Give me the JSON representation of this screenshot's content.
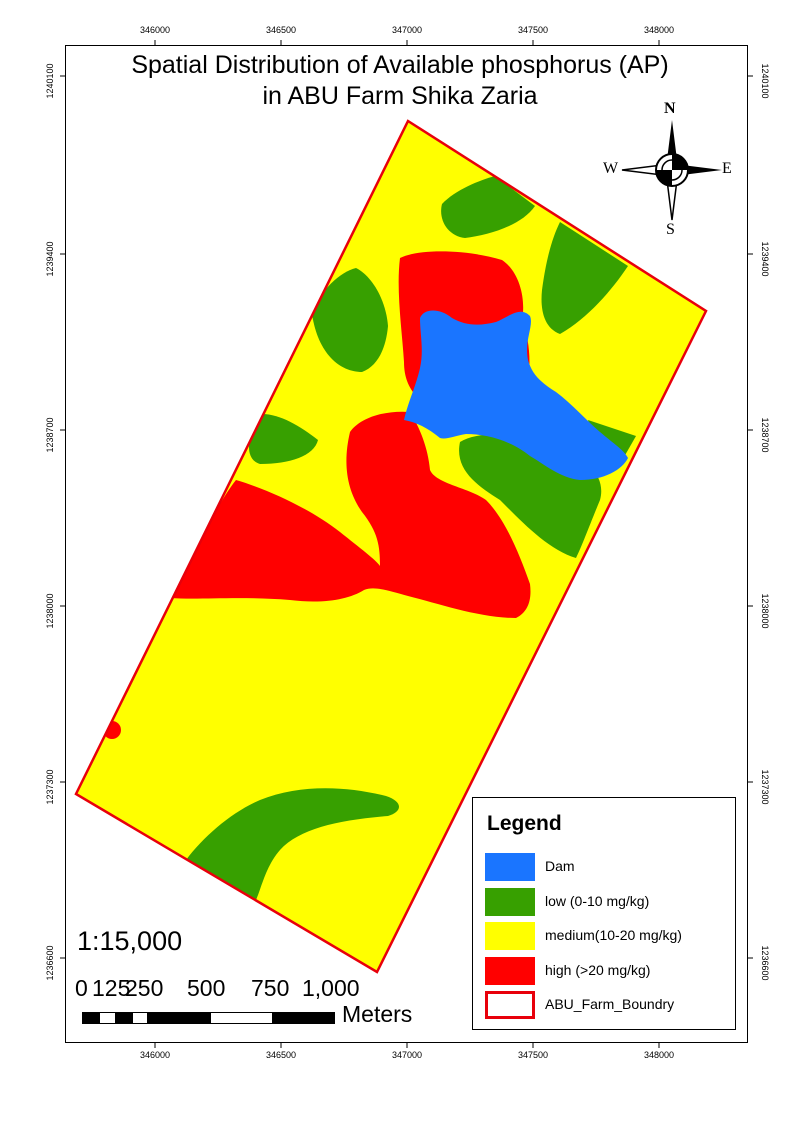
{
  "title_line1": "Spatial Distribution of Available phosphorus (AP)",
  "title_line2": "in ABU Farm Shika Zaria",
  "grid": {
    "x_ticks": [
      "346000",
      "346500",
      "347000",
      "347500",
      "348000"
    ],
    "y_ticks": [
      "1240100",
      "1239400",
      "1238700",
      "1238000",
      "1237300",
      "1236600"
    ]
  },
  "north_arrow": {
    "n": "N",
    "s": "S",
    "e": "E",
    "w": "W"
  },
  "legend": {
    "title": "Legend",
    "items": [
      {
        "label": "Dam",
        "color": "#1a75ff",
        "kind": "fill"
      },
      {
        "label": "low (0-10 mg/kg)",
        "color": "#37a000",
        "kind": "fill"
      },
      {
        "label": "medium(10-20 mg/kg)",
        "color": "#ffff00",
        "kind": "fill"
      },
      {
        "label": "high (>20 mg/kg)",
        "color": "#ff0000",
        "kind": "fill"
      },
      {
        "label": "ABU_Farm_Boundry",
        "color": "#e8000b",
        "kind": "outline"
      }
    ]
  },
  "scale": {
    "ratio": "1:15,000",
    "labels": [
      "0",
      "125",
      "250",
      "500",
      "750",
      "1,000"
    ],
    "units": "Meters"
  },
  "colors": {
    "dam": "#1a75ff",
    "low": "#37a000",
    "medium": "#ffff00",
    "high": "#ff0000",
    "boundary": "#e8000b"
  }
}
